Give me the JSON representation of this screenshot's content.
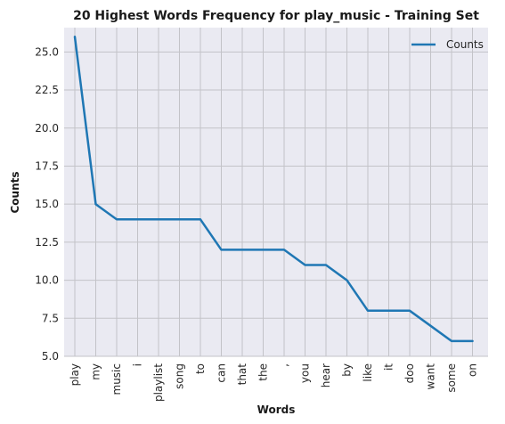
{
  "chart_data": {
    "type": "line",
    "title": "20 Highest Words Frequency for play_music - Training Set",
    "xlabel": "Words",
    "ylabel": "Counts",
    "categories": [
      "play",
      "my",
      "music",
      "i",
      "playlist",
      "song",
      "to",
      "can",
      "that",
      "the",
      ",",
      "you",
      "hear",
      "by",
      "like",
      "it",
      "doo",
      "want",
      "some",
      "on"
    ],
    "series": [
      {
        "name": "Counts",
        "color": "#1f77b4",
        "values": [
          26,
          15,
          14,
          14,
          14,
          14,
          14,
          12,
          12,
          12,
          12,
          11,
          11,
          10,
          8,
          8,
          8,
          7,
          6,
          6
        ]
      }
    ],
    "ylim": [
      5.0,
      26.6
    ],
    "yticks": [
      "5.0",
      "7.5",
      "10.0",
      "12.5",
      "15.0",
      "17.5",
      "20.0",
      "22.5",
      "25.0"
    ],
    "grid": true,
    "legend_position": "top-right",
    "background": "#eaeaf2"
  }
}
